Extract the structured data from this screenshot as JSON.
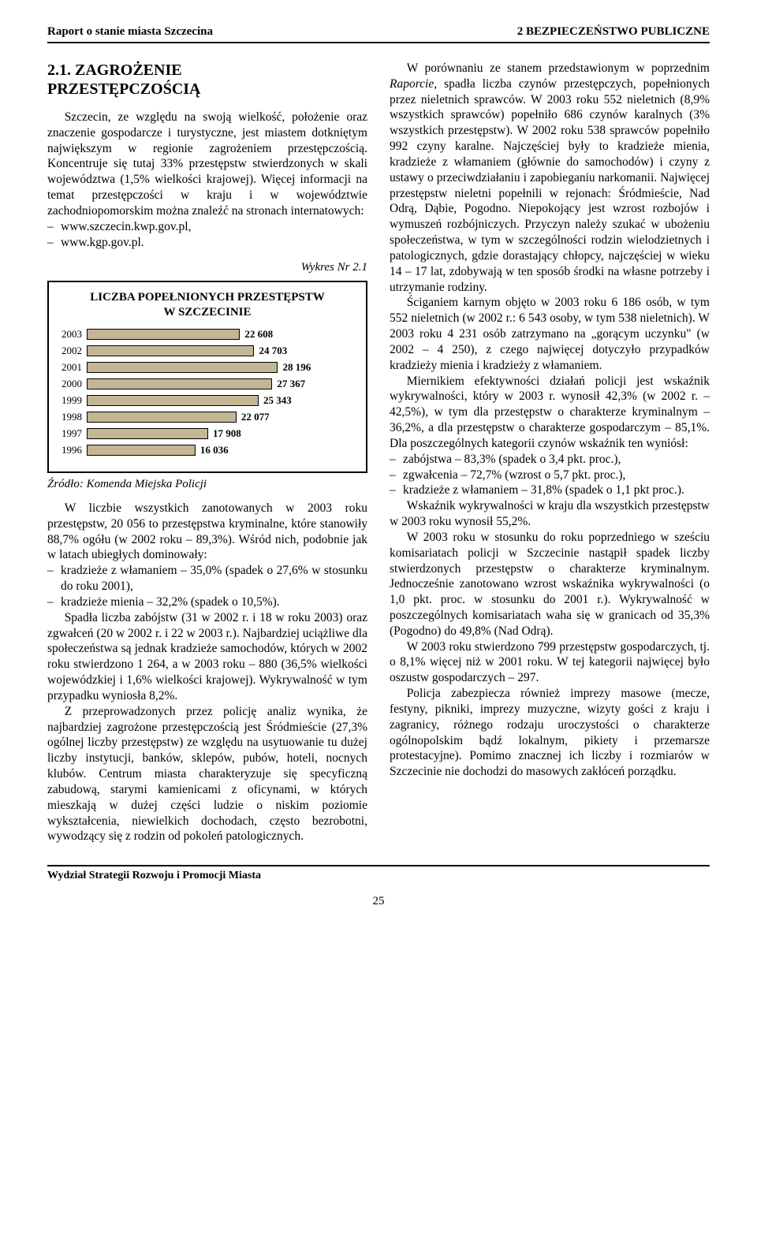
{
  "header": {
    "left": "Raport o stanie miasta Szczecina",
    "right": "2  BEZPIECZEŃSTWO PUBLICZNE"
  },
  "section_heading_a": "2.1. ZAGROŻENIE",
  "section_heading_b": "PRZESTĘPCZOŚCIĄ",
  "left_p1": "Szczecin, ze względu na swoją wielkość, położenie oraz znaczenie gospodarcze i turystyczne, jest miastem dotkniętym największym w regionie zagrożeniem przestępczością. Koncentruje się tutaj 33% przestępstw stwierdzonych w skali województwa (1,5% wielkości krajowej). Więcej informacji na temat przestępczości w kraju i w województwie zachodniopomorskim można znaleźć na stronach internatowych:",
  "left_links": [
    "www.szczecin.kwp.gov.pl,",
    "www.kgp.gov.pl."
  ],
  "chart": {
    "type": "bar",
    "caption": "Wykres Nr 2.1",
    "title_line1": "LICZBA POPEŁNIONYCH PRZESTĘPSTW",
    "title_line2": "W SZCZECINIE",
    "years": [
      "2003",
      "2002",
      "2001",
      "2000",
      "1999",
      "1998",
      "1997",
      "1996"
    ],
    "values": [
      22608,
      24703,
      28196,
      27367,
      25343,
      22077,
      17908,
      16036
    ],
    "value_labels": [
      "22 608",
      "24 703",
      "28 196",
      "27 367",
      "25 343",
      "22 077",
      "17 908",
      "16 036"
    ],
    "bar_color": "#c4b594",
    "bar_border": "#000000",
    "box_border": "#000000",
    "max_scale": 30000,
    "source": "Źródło: Komenda Miejska Policji"
  },
  "left_p2": "W liczbie wszystkich zanotowanych w 2003 roku przestępstw, 20 056 to przestępstwa kryminalne, które stanowiły 88,7% ogółu (w 2002 roku – 89,3%). Wśród nich, podobnie jak w latach ubiegłych dominowały:",
  "left_bullets2": [
    "kradzieże z włamaniem – 35,0% (spadek  o 27,6% w stosunku do roku 2001),",
    "kradzieże mienia – 32,2% (spadek o 10,5%)."
  ],
  "left_p3": "Spadła liczba zabójstw (31 w 2002 r. i 18 w roku 2003) oraz zgwałceń (20 w 2002 r. i 22 w 2003 r.). Najbardziej uciążliwe dla społeczeństwa są jednak kradzieże samochodów, których w 2002 roku stwierdzono 1 264, a w 2003 roku – 880 (36,5% wielkości wojewódzkiej i 1,6% wielkości krajowej). Wykrywalność w tym przypadku wyniosła 8,2%.",
  "left_p4": "Z przeprowadzonych przez policję analiz wynika, że najbardziej zagrożone przestępczością jest Śródmieście (27,3% ogólnej liczby przestępstw) ze względu na usytuowanie tu dużej liczby instytucji, banków, sklepów, pubów, hoteli, nocnych klubów. Centrum miasta charakteryzuje się specyficzną zabudową, starymi kamienicami z oficynami, w których mieszkają w dużej części ludzie o niskim poziomie wykształcenia, niewielkich dochodach, często bezrobotni, wywodzący się z rodzin od pokoleń patologicznych.",
  "right_p1a": "W porównaniu ze stanem przedstawionym w poprzednim ",
  "right_p1b": "Raporcie",
  "right_p1c": ", spadła liczba czynów przestępczych, popełnionych przez nieletnich sprawców. W 2003 roku 552 nieletnich (8,9% wszystkich sprawców) popełniło 686 czynów karalnych (3% wszystkich przestępstw). W 2002 roku 538 sprawców popełniło 992 czyny karalne. Najczęściej były to kradzieże mienia, kradzieże z włamaniem (głównie do samochodów) i czyny z ustawy o przeciwdziałaniu i zapobieganiu narkomanii. Najwięcej przestępstw nieletni popełnili w rejonach: Śródmieście, Nad Odrą, Dąbie, Pogodno. Niepokojący jest wzrost rozbojów i wymuszeń rozbójniczych. Przyczyn należy szukać w ubożeniu społeczeństwa, w tym w szczególności rodzin wielodzietnych i patologicznych, gdzie dorastający chłopcy, najczęściej w wieku 14 – 17 lat, zdobywają w ten sposób środki na własne potrzeby i utrzymanie rodziny.",
  "right_p2": "Ściganiem karnym objęto w 2003 roku 6 186 osób, w tym 552 nieletnich (w 2002 r.: 6 543 osoby, w tym 538 nieletnich). W 2003 roku 4 231 osób zatrzymano na „gorącym uczynku\" (w 2002 – 4 250), z czego najwięcej dotyczyło przypadków kradzieży mienia i kradzieży z włamaniem.",
  "right_p3": "Miernikiem efektywności działań policji jest wskaźnik wykrywalności, który w 2003 r. wynosił 42,3% (w 2002 r. – 42,5%), w tym dla przestępstw o charakterze kryminalnym – 36,2%, a dla przestępstw o charakterze gospodarczym – 85,1%. Dla poszczególnych kategorii czynów wskaźnik ten wyniósł:",
  "right_bullets": [
    "zabójstwa – 83,3% (spadek o 3,4 pkt. proc.),",
    "zgwałcenia – 72,7% (wzrost o 5,7 pkt. proc.),",
    "kradzieże z włamaniem – 31,8% (spadek o 1,1 pkt proc.)."
  ],
  "right_p4": "Wskaźnik wykrywalności w kraju dla wszystkich przestępstw w 2003 roku wynosił 55,2%.",
  "right_p5": "W 2003 roku w stosunku do roku poprzedniego w sześciu komisariatach policji w Szczecinie nastąpił spadek liczby stwierdzonych przestępstw o charakterze kryminalnym. Jednocześnie zanotowano wzrost wskaźnika wykrywalności (o 1,0 pkt. proc. w stosunku do 2001 r.). Wykrywalność w poszczególnych komisariatach waha się w granicach od 35,3% (Pogodno) do 49,8% (Nad Odrą).",
  "right_p6": "W 2003 roku stwierdzono 799 przestępstw gospodarczych, tj. o 8,1% więcej niż w 2001 roku. W tej kategorii najwięcej było oszustw gospodarczych – 297.",
  "right_p7": "Policja zabezpiecza również imprezy masowe (mecze, festyny, pikniki, imprezy muzyczne, wizyty gości z kraju i zagranicy, różnego rodzaju uroczystości o charakterze ogólnopolskim bądź lokalnym, pikiety i przemarsze protestacyjne). Pomimo znacznej ich liczby i rozmiarów w Szczecinie nie dochodzi do masowych zakłóceń porządku.",
  "footer": {
    "left": "Wydział Strategii Rozwoju i Promocji Miasta",
    "page": "25"
  }
}
